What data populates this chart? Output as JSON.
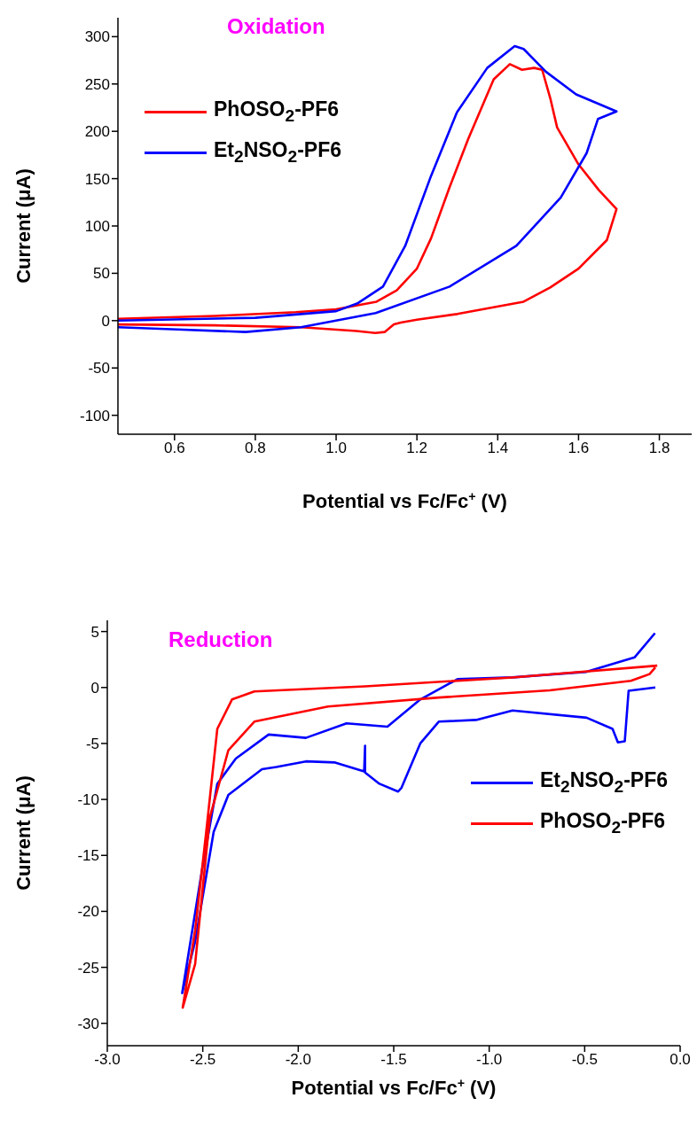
{
  "chart_data": [
    {
      "type": "line",
      "title": "Oxidation",
      "xlabel": "Potential vs Fc/Fc$^{+}$ (V)",
      "ylabel": "Current (μA)",
      "xlim": [
        0.46,
        1.88
      ],
      "xticks": [
        0.6,
        0.8,
        {
          "value": 1.0,
          "label": "1.0"
        },
        1.2,
        1.4,
        1.6,
        1.8
      ],
      "ylim": [
        -120,
        320
      ],
      "yticks": [
        -100,
        -50,
        0,
        50,
        100,
        150,
        200,
        250,
        300
      ],
      "legend": "top left",
      "grid": false,
      "marker": "none",
      "line_style": "solid",
      "series": [
        {
          "name": "PhOSO$_{2}$-PF6",
          "color": "#ff0000",
          "x": [
            0.46,
            0.7,
            0.9,
            1.0,
            1.1,
            1.15,
            1.2,
            1.235,
            1.28,
            1.327,
            1.39,
            1.43,
            1.46,
            1.49,
            1.51,
            1.53,
            1.547,
            1.6,
            1.65,
            1.694,
            1.67,
            1.6,
            1.53,
            1.464,
            1.3,
            1.2,
            1.16,
            1.143,
            1.12,
            1.097,
            1.05,
            0.913,
            0.7,
            0.46
          ],
          "values": [
            2,
            5,
            9,
            12,
            20,
            32,
            55,
            87,
            140,
            192,
            255,
            271,
            265,
            267,
            265,
            235,
            204,
            165,
            138,
            118,
            85,
            55,
            35,
            20,
            7,
            1,
            -2,
            -4,
            -12,
            -13,
            -11,
            -7,
            -5,
            -4
          ]
        },
        {
          "name": "Et$_{2}$NSO$_{2}$-PF6",
          "color": "#0000ff",
          "x": [
            0.46,
            0.8,
            1.0,
            1.052,
            1.116,
            1.171,
            1.235,
            1.299,
            1.374,
            1.442,
            1.464,
            1.519,
            1.594,
            1.694,
            1.648,
            1.62,
            1.556,
            1.446,
            1.281,
            1.098,
            0.913,
            0.776,
            0.592,
            0.46
          ],
          "values": [
            0,
            3,
            10,
            18,
            36,
            79,
            153,
            220,
            267,
            290,
            287,
            263,
            239,
            221,
            213,
            177,
            130,
            79,
            36,
            8,
            -7,
            -12,
            -9,
            -7
          ]
        }
      ]
    },
    {
      "type": "line",
      "title": "Reduction",
      "xlabel": "Potential vs Fc/Fc$^{+}$ (V)",
      "ylabel": "Current (μA)",
      "xlim": [
        -3.0,
        0.0
      ],
      "xticks": [
        {
          "value": -3.0,
          "label": "-3.0"
        },
        -2.5,
        {
          "value": -2.0,
          "label": "-2.0"
        },
        -1.5,
        {
          "value": -1.0,
          "label": "-1.0"
        },
        -0.5,
        {
          "value": 0.0,
          "label": "0.0"
        }
      ],
      "ylim": [
        -32,
        6
      ],
      "yticks": [
        -30,
        -25,
        -20,
        -15,
        -10,
        -5,
        0,
        5
      ],
      "legend": "right",
      "grid": false,
      "marker": "none",
      "line_style": "solid",
      "series": [
        {
          "name": "Et$_{2}$NSO$_{2}$-PF6",
          "color": "#0000ff",
          "x": [
            -0.13,
            -0.27,
            -0.29,
            -0.326,
            -0.354,
            -0.49,
            -0.878,
            -1.069,
            -1.264,
            -1.361,
            -1.459,
            -1.477,
            -1.575,
            -1.65,
            -1.65,
            -1.655,
            -1.807,
            -1.96,
            -2.115,
            -2.19,
            -2.366,
            -2.443,
            -2.54,
            -2.608,
            -2.503,
            -2.424,
            -2.327,
            -2.155,
            -1.96,
            -1.747,
            -1.533,
            -1.361,
            -1.166,
            -0.878,
            -0.49,
            -0.238,
            -0.132
          ],
          "values": [
            0.0,
            -0.3,
            -4.8,
            -4.9,
            -3.7,
            -2.7,
            -2.05,
            -2.9,
            -3.05,
            -5.0,
            -8.95,
            -9.3,
            -8.6,
            -7.6,
            -5.2,
            -7.5,
            -6.7,
            -6.6,
            -7.1,
            -7.3,
            -9.6,
            -12.9,
            -22.7,
            -27.3,
            -16.2,
            -8.6,
            -6.35,
            -4.2,
            -4.5,
            -3.2,
            -3.5,
            -1.07,
            0.75,
            0.9,
            1.4,
            2.7,
            4.85
          ]
        },
        {
          "name": "PhOSO$_{2}$-PF6",
          "color": "#ff0000",
          "x": [
            -0.12,
            -0.878,
            -1.65,
            -2.23,
            -2.347,
            -2.424,
            -2.482,
            -2.54,
            -2.605,
            -2.54,
            -2.463,
            -2.366,
            -2.23,
            -1.844,
            -1.264,
            -0.683,
            -0.258,
            -0.16,
            -0.13
          ],
          "values": [
            1.95,
            0.9,
            0.1,
            -0.35,
            -1.07,
            -3.7,
            -12.9,
            -21.7,
            -28.6,
            -24.7,
            -11.6,
            -5.6,
            -3.05,
            -1.7,
            -0.9,
            -0.25,
            0.6,
            1.2,
            1.8
          ]
        }
      ]
    }
  ]
}
